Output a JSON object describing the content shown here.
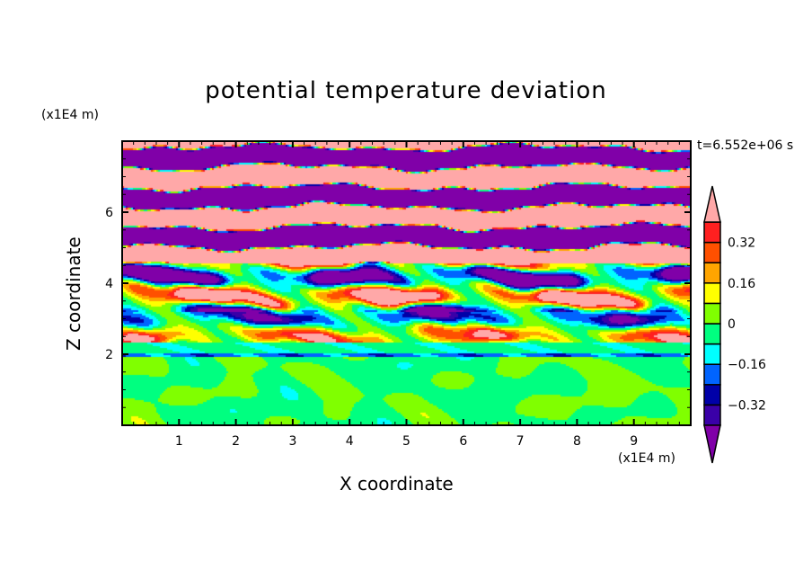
{
  "chart_data": {
    "type": "heatmap",
    "title": "potential temperature deviation",
    "xlabel": "X coordinate",
    "ylabel": "Z coordinate",
    "x_unit": "(x1E4 m)",
    "z_unit": "(x1E4 m)",
    "time_label": "t=6.552e+06 s",
    "xlim": [
      0,
      10
    ],
    "ylim": [
      0,
      8
    ],
    "xticks": [
      1,
      2,
      3,
      4,
      5,
      6,
      7,
      8,
      9
    ],
    "yticks": [
      2,
      4,
      6
    ],
    "levels": [
      -0.4,
      -0.32,
      -0.24,
      -0.16,
      -0.08,
      0,
      0.08,
      0.16,
      0.24,
      0.32,
      0.4
    ],
    "colorbar_labels": [
      {
        "value": 0.32,
        "text": "0.32"
      },
      {
        "value": 0.16,
        "text": "0.16"
      },
      {
        "value": 0,
        "text": "0"
      },
      {
        "value": -0.16,
        "text": "−0.16"
      },
      {
        "value": -0.32,
        "text": "−0.32"
      }
    ],
    "colors": [
      "#8000a8",
      "#3a00a8",
      "#0000a8",
      "#0064ff",
      "#00ffff",
      "#00ff80",
      "#80ff00",
      "#ffff00",
      "#ffa500",
      "#ff5000",
      "#ff2020",
      "#ffa8a8"
    ]
  }
}
